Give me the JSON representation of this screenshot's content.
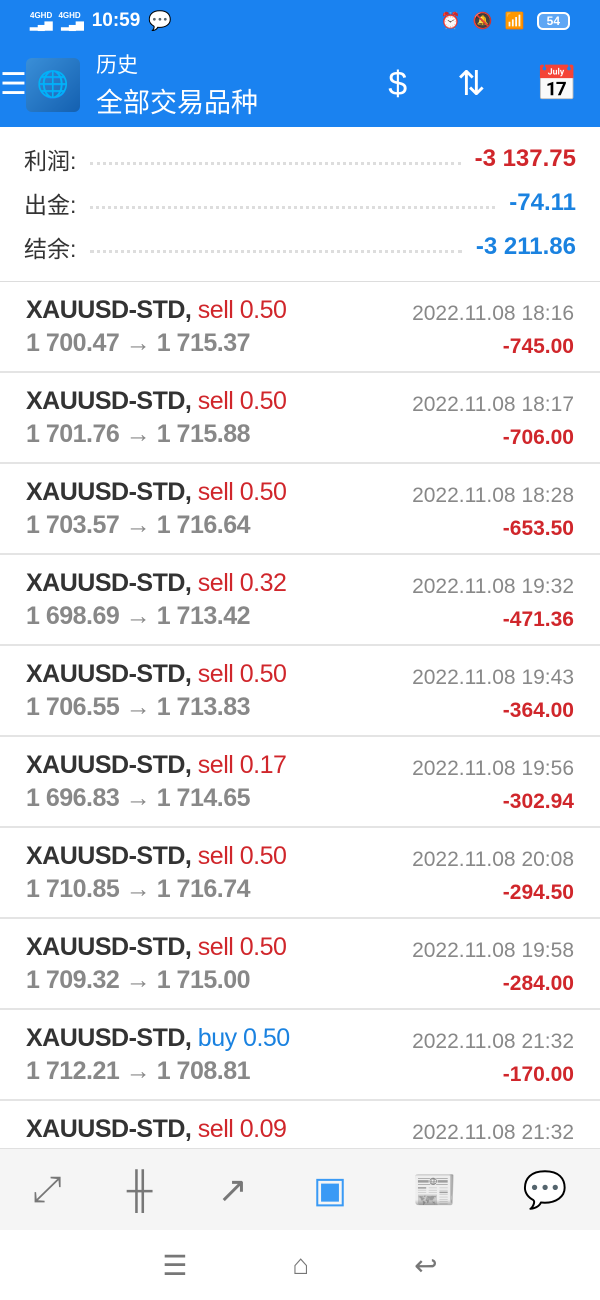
{
  "status_bar": {
    "time": "10:59",
    "network": "4GHD 4GHD",
    "battery": "54"
  },
  "header": {
    "title": "历史",
    "subtitle": "全部交易品种",
    "icons": [
      "menu-icon",
      "mt4-logo",
      "currency-exchange-icon",
      "sort-icon",
      "calendar-contact-icon"
    ]
  },
  "summary": [
    {
      "label": "利润:",
      "value": "-3 137.75",
      "color": "#d0262b"
    },
    {
      "label": "出金:",
      "value": "-74.11",
      "color": "#1a82e0"
    },
    {
      "label": "结余:",
      "value": "-3 211.86",
      "color": "#1a82e0"
    }
  ],
  "trades": [
    {
      "symbol": "XAUUSD-STD,",
      "side": "sell 0.50",
      "type": "sell",
      "prices": "1 700.47 → 1 715.37",
      "time": "2022.11.08 18:16",
      "profit": "-745.00"
    },
    {
      "symbol": "XAUUSD-STD,",
      "side": "sell 0.50",
      "type": "sell",
      "prices": "1 701.76 → 1 715.88",
      "time": "2022.11.08 18:17",
      "profit": "-706.00"
    },
    {
      "symbol": "XAUUSD-STD,",
      "side": "sell 0.50",
      "type": "sell",
      "prices": "1 703.57 → 1 716.64",
      "time": "2022.11.08 18:28",
      "profit": "-653.50"
    },
    {
      "symbol": "XAUUSD-STD,",
      "side": "sell 0.32",
      "type": "sell",
      "prices": "1 698.69 → 1 713.42",
      "time": "2022.11.08 19:32",
      "profit": "-471.36"
    },
    {
      "symbol": "XAUUSD-STD,",
      "side": "sell 0.50",
      "type": "sell",
      "prices": "1 706.55 → 1 713.83",
      "time": "2022.11.08 19:43",
      "profit": "-364.00"
    },
    {
      "symbol": "XAUUSD-STD,",
      "side": "sell 0.17",
      "type": "sell",
      "prices": "1 696.83 → 1 714.65",
      "time": "2022.11.08 19:56",
      "profit": "-302.94"
    },
    {
      "symbol": "XAUUSD-STD,",
      "side": "sell 0.50",
      "type": "sell",
      "prices": "1 710.85 → 1 716.74",
      "time": "2022.11.08 20:08",
      "profit": "-294.50"
    },
    {
      "symbol": "XAUUSD-STD,",
      "side": "sell 0.50",
      "type": "sell",
      "prices": "1 709.32 → 1 715.00",
      "time": "2022.11.08 19:58",
      "profit": "-284.00"
    },
    {
      "symbol": "XAUUSD-STD,",
      "side": "buy 0.50",
      "type": "buy",
      "prices": "1 712.21 → 1 708.81",
      "time": "2022.11.08 21:32",
      "profit": "-170.00"
    },
    {
      "symbol": "XAUUSD-STD,",
      "side": "sell 0.09",
      "type": "sell",
      "prices": "",
      "time": "2022.11.08 21:32",
      "profit": ""
    }
  ],
  "bottom_nav": [
    "quotes-icon",
    "chart-icon",
    "trade-icon",
    "history-icon",
    "news-icon",
    "chat-icon"
  ],
  "bottom_nav_active": "history-icon",
  "colors": {
    "brand": "#1a82f0",
    "sell": "#d0262b",
    "buy": "#1a82e0"
  }
}
